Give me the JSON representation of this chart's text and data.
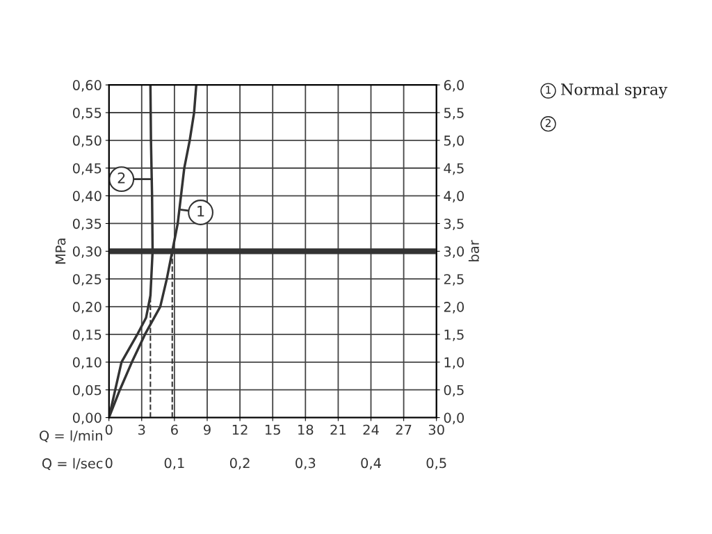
{
  "chart_data": {
    "type": "line",
    "xlabel": "Q = l/min",
    "x2label": "Q = l/sec",
    "ylabel": "MPa",
    "y2label": "bar",
    "xlim": [
      0,
      30
    ],
    "xticks": [
      0,
      3,
      6,
      9,
      12,
      15,
      18,
      21,
      24,
      27,
      30
    ],
    "x2lim": [
      0,
      0.5
    ],
    "x2ticks": [
      0,
      {
        "value": 0.1,
        "label": "0,1"
      },
      {
        "value": 0.2,
        "label": "0,2"
      },
      {
        "value": 0.3,
        "label": "0,3"
      },
      {
        "value": 0.4,
        "label": "0,4"
      },
      {
        "value": 0.5,
        "label": "0,5"
      }
    ],
    "ylim": [
      0,
      0.6
    ],
    "yticks": [
      {
        "value": 0,
        "label": "0,00"
      },
      {
        "value": 0.05,
        "label": "0,05"
      },
      {
        "value": 0.1,
        "label": "0,10"
      },
      {
        "value": 0.15,
        "label": "0,15"
      },
      {
        "value": 0.2,
        "label": "0,20"
      },
      {
        "value": 0.25,
        "label": "0,25"
      },
      {
        "value": 0.3,
        "label": "0,30"
      },
      {
        "value": 0.35,
        "label": "0,35"
      },
      {
        "value": 0.4,
        "label": "0,40"
      },
      {
        "value": 0.45,
        "label": "0,45"
      },
      {
        "value": 0.5,
        "label": "0,50"
      },
      {
        "value": 0.55,
        "label": "0,55"
      },
      {
        "value": 0.6,
        "label": "0,60"
      }
    ],
    "y2lim": [
      0,
      6
    ],
    "y2ticks": [
      {
        "value": 0,
        "label": "0,0"
      },
      {
        "value": 0.5,
        "label": "0,5"
      },
      {
        "value": 1,
        "label": "1,0"
      },
      {
        "value": 1.5,
        "label": "1,5"
      },
      {
        "value": 2,
        "label": "2,0"
      },
      {
        "value": 2.5,
        "label": "2,5"
      },
      {
        "value": 3,
        "label": "3,0"
      },
      {
        "value": 3.5,
        "label": "3,5"
      },
      {
        "value": 4,
        "label": "4,0"
      },
      {
        "value": 4.5,
        "label": "4,5"
      },
      {
        "value": 5,
        "label": "5,0"
      },
      {
        "value": 5.5,
        "label": "5,5"
      },
      {
        "value": 6,
        "label": "6,0"
      }
    ],
    "grid": true,
    "marker": "none",
    "series": [
      {
        "color": "#333333",
        "line_style": "solid",
        "x": [
          0,
          1.0,
          2.1,
          3.3,
          4.7,
          5.3,
          5.8,
          6.3,
          6.9,
          7.4,
          7.8,
          8.0
        ],
        "values": [
          0,
          0.05,
          0.1,
          0.15,
          0.2,
          0.25,
          0.3,
          0.35,
          0.45,
          0.5,
          0.55,
          0.6
        ]
      },
      {
        "color": "#333333",
        "line_style": "solid",
        "x": [
          0,
          1.15,
          2.6,
          3.4,
          3.8,
          4.0,
          3.95,
          3.85,
          3.8
        ],
        "values": [
          0,
          0.1,
          0.15,
          0.18,
          0.22,
          0.3,
          0.4,
          0.5,
          0.6
        ]
      },
      {
        "color": "#333333",
        "line_style": "dashed",
        "x": [
          5.8,
          5.8
        ],
        "values": [
          0,
          0.3
        ]
      },
      {
        "color": "#333333",
        "line_style": "dashed",
        "x": [
          3.8,
          3.8
        ],
        "values": [
          0,
          0.22
        ]
      }
    ],
    "ref_lines": [
      {
        "axis": "y",
        "value": 0.3,
        "color": "#333333"
      }
    ],
    "annotations": [
      {
        "text": "1",
        "x": 6.6,
        "y": 0.375
      },
      {
        "text": "2",
        "x": 3.95,
        "y": 0.43
      },
      "1",
      "Normal spray",
      "2"
    ]
  }
}
